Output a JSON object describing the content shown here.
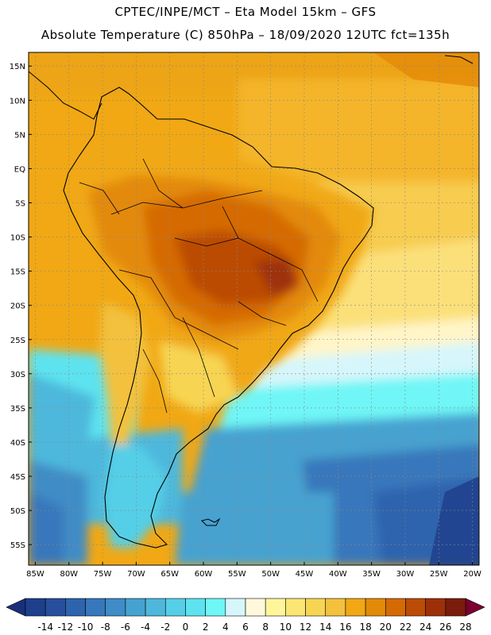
{
  "header": {
    "line1": "CPTEC/INPE/MCT –  Eta Model 15km – GFS",
    "line2": "Absolute Temperature (C) 850hPa – 18/09/2020 12UTC fct=135h"
  },
  "map": {
    "lon_range": [
      -86,
      -19
    ],
    "lat_range": [
      -58,
      17
    ],
    "lat_ticks": [
      {
        "value": 15,
        "label": "15N"
      },
      {
        "value": 10,
        "label": "10N"
      },
      {
        "value": 5,
        "label": "5N"
      },
      {
        "value": 0,
        "label": "EQ"
      },
      {
        "value": -5,
        "label": "5S"
      },
      {
        "value": -10,
        "label": "10S"
      },
      {
        "value": -15,
        "label": "15S"
      },
      {
        "value": -20,
        "label": "20S"
      },
      {
        "value": -25,
        "label": "25S"
      },
      {
        "value": -30,
        "label": "30S"
      },
      {
        "value": -35,
        "label": "35S"
      },
      {
        "value": -40,
        "label": "40S"
      },
      {
        "value": -45,
        "label": "45S"
      },
      {
        "value": -50,
        "label": "50S"
      },
      {
        "value": -55,
        "label": "55S"
      }
    ],
    "lon_ticks": [
      {
        "value": -85,
        "label": "85W"
      },
      {
        "value": -80,
        "label": "80W"
      },
      {
        "value": -75,
        "label": "75W"
      },
      {
        "value": -70,
        "label": "70W"
      },
      {
        "value": -65,
        "label": "65W"
      },
      {
        "value": -60,
        "label": "60W"
      },
      {
        "value": -55,
        "label": "55W"
      },
      {
        "value": -50,
        "label": "50W"
      },
      {
        "value": -45,
        "label": "45W"
      },
      {
        "value": -40,
        "label": "40W"
      },
      {
        "value": -35,
        "label": "35W"
      },
      {
        "value": -30,
        "label": "30W"
      },
      {
        "value": -25,
        "label": "25W"
      },
      {
        "value": -20,
        "label": "20W"
      }
    ]
  },
  "colorbar": {
    "labels": [
      "-14",
      "-12",
      "-10",
      "-8",
      "-6",
      "-4",
      "-2",
      "0",
      "2",
      "4",
      "6",
      "8",
      "10",
      "12",
      "14",
      "16",
      "18",
      "20",
      "22",
      "24",
      "26",
      "28"
    ],
    "colors": [
      "#1e3f8c",
      "#274f9e",
      "#2e63ad",
      "#3777bb",
      "#3f8cc6",
      "#46a2d0",
      "#4db8dc",
      "#55cfe7",
      "#5de3ef",
      "#6ff6f6",
      "#d6f6fb",
      "#fff8dd",
      "#fff59a",
      "#fce673",
      "#f7d553",
      "#f3c13c",
      "#f1a814",
      "#e38a08",
      "#d56a05",
      "#bb4c06",
      "#9d3008",
      "#7a1c0b"
    ],
    "low_color": "#1a2f7c",
    "high_color": "#7a0030"
  }
}
